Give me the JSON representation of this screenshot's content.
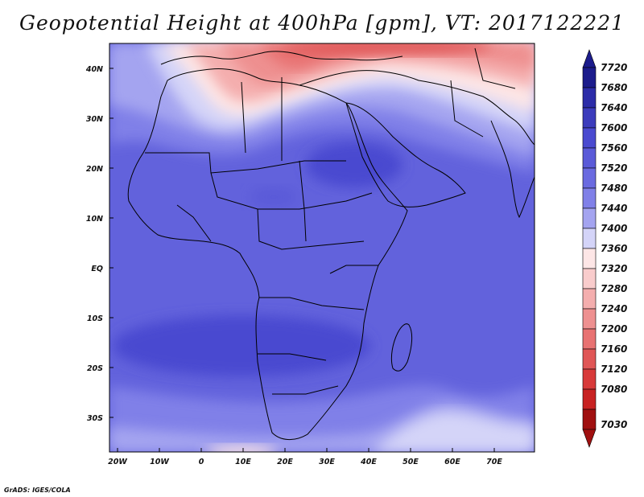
{
  "title": "Geopotential Height at 400hPa [gpm], VT: 2017122221",
  "credit": "GrADS: IGES/COLA",
  "map": {
    "lon_labels": [
      "20W",
      "10W",
      "0",
      "10E",
      "20E",
      "30E",
      "40E",
      "50E",
      "60E",
      "70E"
    ],
    "lat_labels": [
      "40N",
      "30N",
      "20N",
      "10N",
      "EQ",
      "10S",
      "20S",
      "30S"
    ],
    "lon_range": [
      -22,
      80
    ],
    "lat_range": [
      -37,
      45
    ]
  },
  "colorbar": {
    "levels": [
      "7720",
      "7680",
      "7640",
      "7600",
      "7560",
      "7520",
      "7480",
      "7440",
      "7400",
      "7360",
      "7320",
      "7280",
      "7240",
      "7200",
      "7160",
      "7120",
      "7080",
      "7030"
    ],
    "colors": [
      "#1c1c8c",
      "#2c2ca8",
      "#3c3cbc",
      "#4a4ad0",
      "#5a5ad8",
      "#6a6ae0",
      "#8080e8",
      "#a4a4f0",
      "#d4d4f8",
      "#fde6e6",
      "#f9cccc",
      "#f4aeae",
      "#ee9090",
      "#e87272",
      "#e05656",
      "#d83a3a",
      "#c82222",
      "#a01010"
    ]
  }
}
